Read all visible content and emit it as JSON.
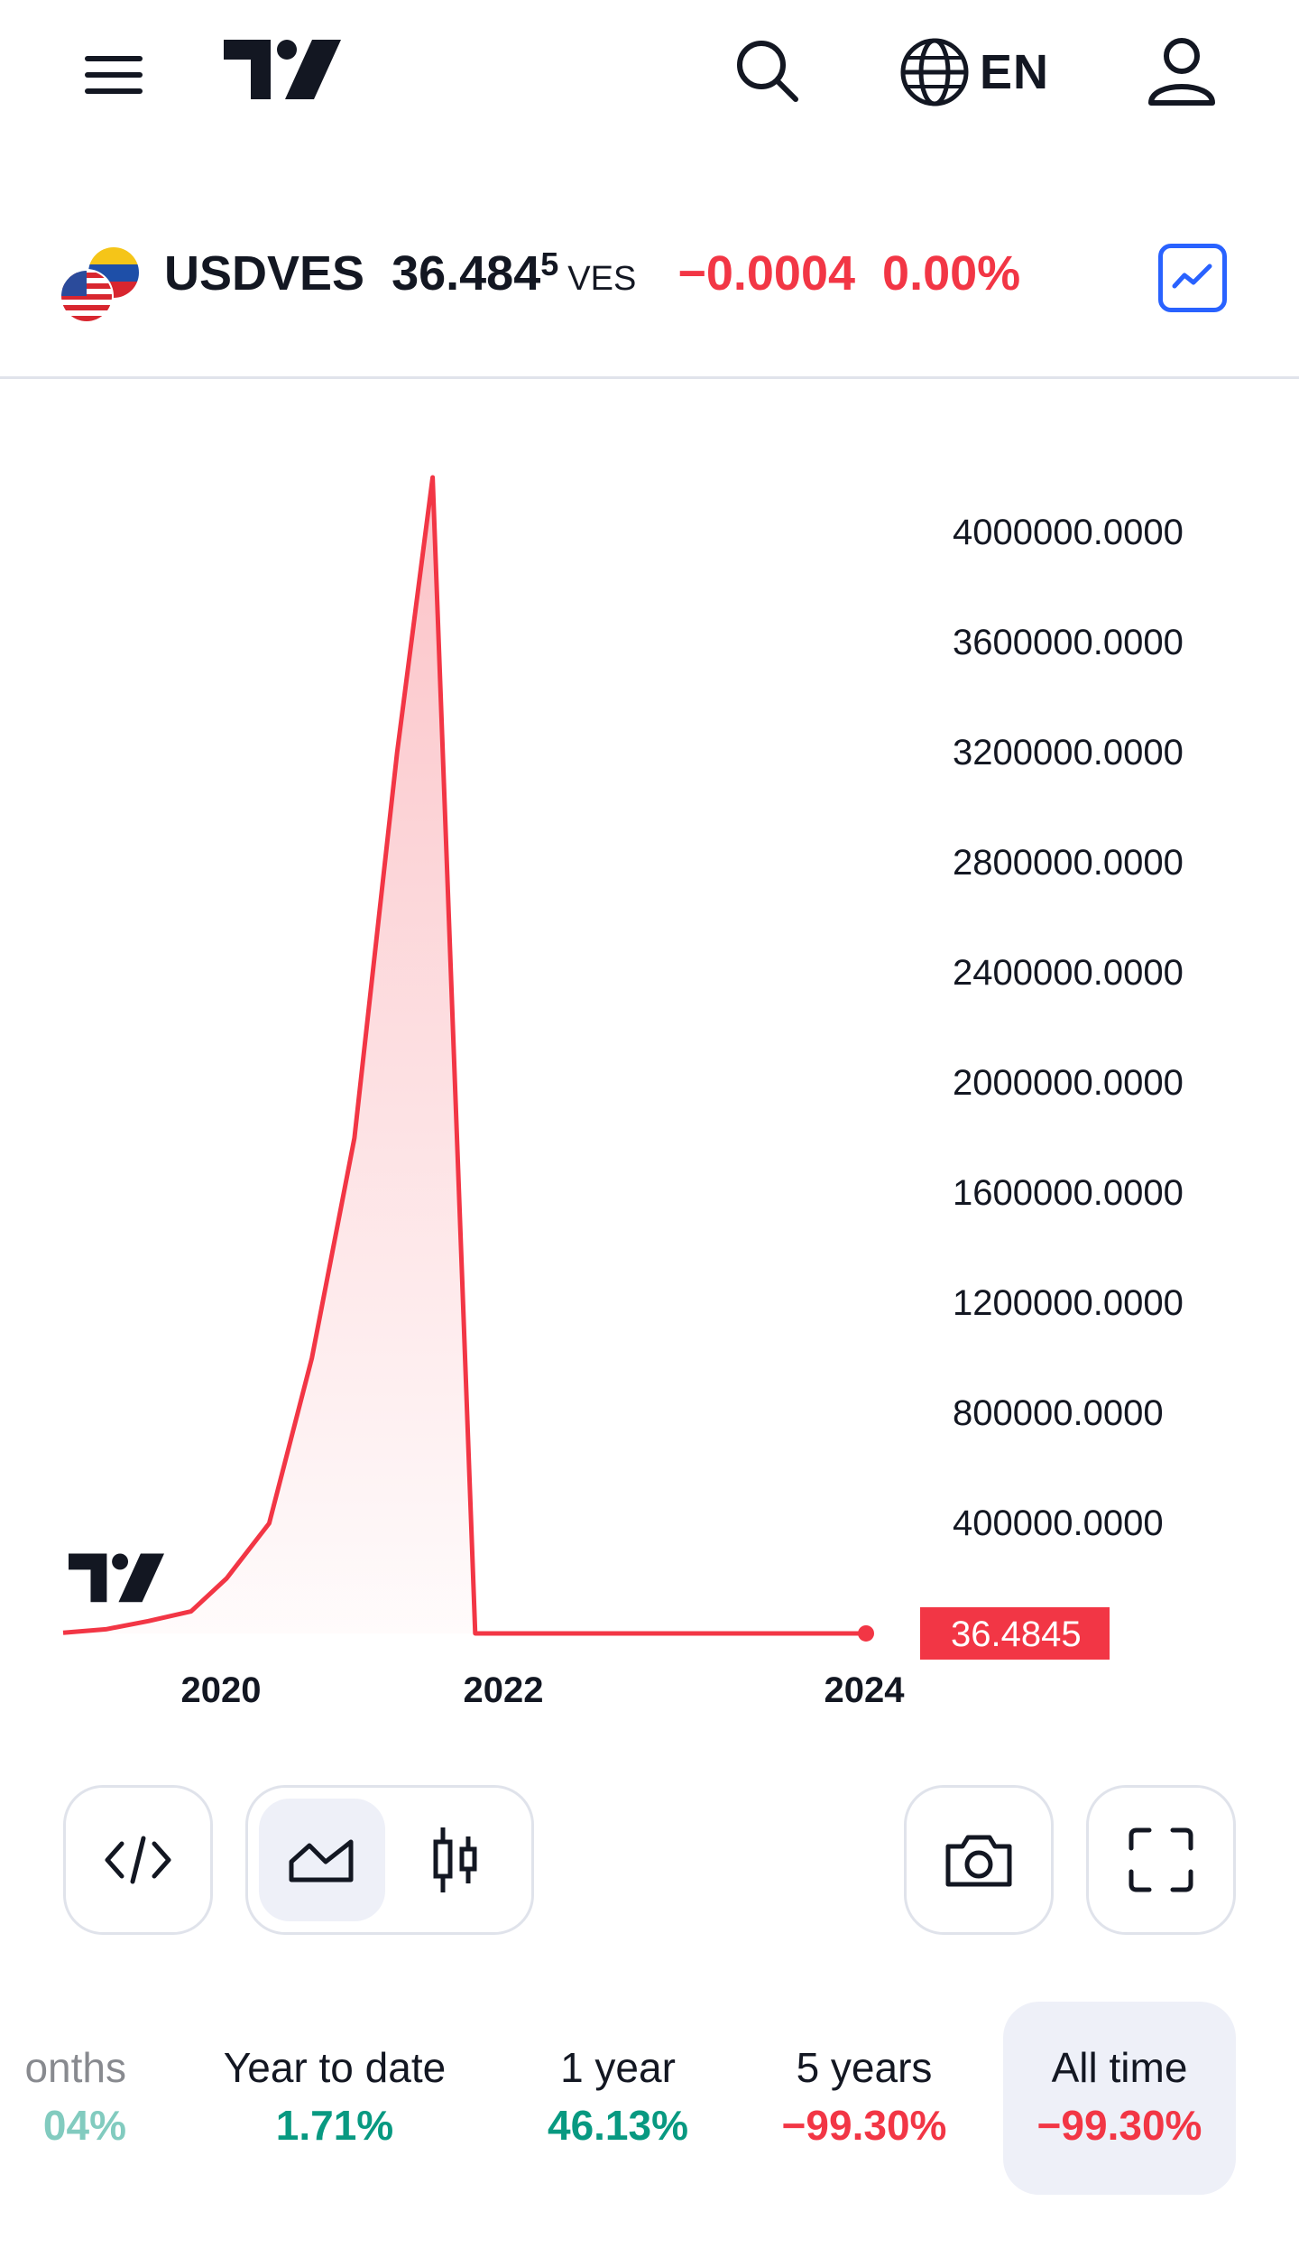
{
  "header": {
    "menu_icon": "hamburger-menu-icon",
    "logo_icon": "tradingview-logo-icon",
    "search_icon": "search-icon",
    "globe_icon": "globe-icon",
    "language": "EN",
    "user_icon": "user-icon"
  },
  "ticker": {
    "symbol": "USDVES",
    "price_main": "36.484",
    "price_sup": "5",
    "currency": "VES",
    "change": "−0.0004",
    "change_pct": "0.00%",
    "change_color": "#f23645",
    "chart_type_icon": "line-chart-icon",
    "flags_icon": "us-venezuela-flags-icon"
  },
  "chart_data": {
    "type": "area",
    "color": "#f23645",
    "x_ticks": [
      "2020",
      "2022",
      "2024"
    ],
    "y_ticks": [
      "4000000.0000",
      "3600000.0000",
      "3200000.0000",
      "2800000.0000",
      "2400000.0000",
      "2000000.0000",
      "1600000.0000",
      "1200000.0000",
      "800000.0000",
      "400000.0000"
    ],
    "ylim": [
      0,
      4000000
    ],
    "x": [
      "2018.85",
      "2019.15",
      "2019.45",
      "2019.75",
      "2020.0",
      "2020.3",
      "2020.6",
      "2020.9",
      "2021.2",
      "2021.45",
      "2021.75",
      "2022.0",
      "2022.5",
      "2023.0",
      "2023.5",
      "2024.0",
      "2024.5"
    ],
    "values": [
      2500,
      15000,
      45000,
      80000,
      200000,
      400000,
      1000000,
      1800000,
      3200000,
      4200000,
      5,
      5,
      6,
      8,
      15,
      30,
      36.4845
    ],
    "last_value_label": "36.4845",
    "grid": false
  },
  "tools": {
    "embed_icon": "embed-code-icon",
    "line_icon": "area-chart-icon",
    "candle_icon": "candlestick-icon",
    "camera_icon": "camera-icon",
    "fullscreen_icon": "fullscreen-icon"
  },
  "ranges": [
    {
      "label": "onths",
      "value": "04%"
    },
    {
      "label": "Year to date",
      "value": "1.71%"
    },
    {
      "label": "1 year",
      "value": "46.13%"
    },
    {
      "label": "5 years",
      "value": "−99.30%"
    },
    {
      "label": "All time",
      "value": "−99.30%"
    }
  ]
}
